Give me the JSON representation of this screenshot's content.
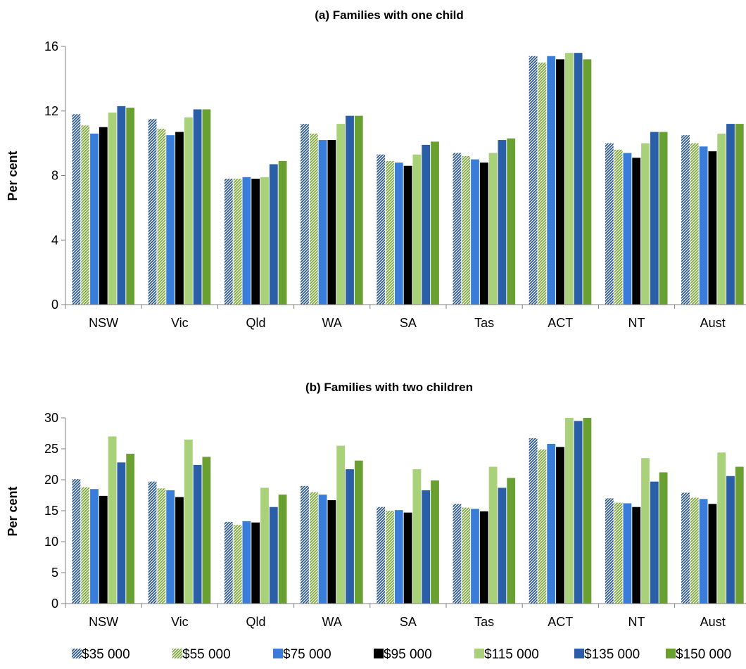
{
  "legend": [
    "$35 000",
    "$55 000",
    "$75 000",
    "$95 000",
    "$115 000",
    "$135 000",
    "$150 000"
  ],
  "colors": {
    "s35": "#1f4e8c",
    "s55": "#76a52d",
    "s75": "#3a7dd8",
    "s95": "#000000",
    "s115": "#a9d179",
    "s135": "#2a5fa8",
    "s150": "#6a9f32",
    "axis": "#808080"
  },
  "chart_data": [
    {
      "type": "bar",
      "title": "(a) Families with one child",
      "ylabel": "Per cent",
      "xlabel": "",
      "ylim": [
        0,
        16
      ],
      "yticks": [
        0,
        4,
        8,
        12,
        16
      ],
      "categories": [
        "NSW",
        "Vic",
        "Qld",
        "WA",
        "SA",
        "Tas",
        "ACT",
        "NT",
        "Aust"
      ],
      "series": [
        {
          "name": "$35 000",
          "values": [
            11.8,
            11.5,
            7.8,
            11.2,
            9.3,
            9.4,
            15.4,
            10.0,
            10.5
          ]
        },
        {
          "name": "$55 000",
          "values": [
            11.1,
            10.9,
            7.8,
            10.6,
            8.9,
            9.2,
            15.0,
            9.6,
            10.0
          ]
        },
        {
          "name": "$75 000",
          "values": [
            10.6,
            10.5,
            7.9,
            10.2,
            8.8,
            9.0,
            15.4,
            9.4,
            9.8
          ]
        },
        {
          "name": "$95 000",
          "values": [
            11.0,
            10.7,
            7.8,
            10.2,
            8.6,
            8.8,
            15.2,
            9.1,
            9.5
          ]
        },
        {
          "name": "$115 000",
          "values": [
            11.9,
            11.6,
            7.9,
            11.2,
            9.3,
            9.4,
            15.6,
            10.0,
            10.6
          ]
        },
        {
          "name": "$135 000",
          "values": [
            12.3,
            12.1,
            8.7,
            11.7,
            9.9,
            10.2,
            15.6,
            10.7,
            11.2
          ]
        },
        {
          "name": "$150 000",
          "values": [
            12.2,
            12.1,
            8.9,
            11.7,
            10.1,
            10.3,
            15.2,
            10.7,
            11.2
          ]
        }
      ]
    },
    {
      "type": "bar",
      "title": "(b) Families with two children",
      "ylabel": "Per cent",
      "xlabel": "",
      "ylim": [
        0,
        30
      ],
      "yticks": [
        0,
        5,
        10,
        15,
        20,
        25,
        30
      ],
      "categories": [
        "NSW",
        "Vic",
        "Qld",
        "WA",
        "SA",
        "Tas",
        "ACT",
        "NT",
        "Aust"
      ],
      "series": [
        {
          "name": "$35 000",
          "values": [
            20.1,
            19.7,
            13.2,
            19.0,
            15.6,
            16.1,
            26.7,
            17.0,
            17.9
          ]
        },
        {
          "name": "$55 000",
          "values": [
            18.8,
            18.6,
            12.7,
            18.0,
            15.0,
            15.5,
            24.9,
            16.3,
            17.1
          ]
        },
        {
          "name": "$75 000",
          "values": [
            18.5,
            18.3,
            13.3,
            17.6,
            15.1,
            15.3,
            25.8,
            16.2,
            16.9
          ]
        },
        {
          "name": "$95 000",
          "values": [
            17.4,
            17.2,
            13.1,
            16.7,
            14.7,
            14.9,
            25.3,
            15.6,
            16.1
          ]
        },
        {
          "name": "$115 000",
          "values": [
            27.0,
            26.5,
            18.7,
            25.5,
            21.7,
            22.1,
            30.0,
            23.5,
            24.4
          ]
        },
        {
          "name": "$135 000",
          "values": [
            22.8,
            22.4,
            15.6,
            21.7,
            18.3,
            18.7,
            29.5,
            19.7,
            20.6
          ]
        },
        {
          "name": "$150 000",
          "values": [
            24.2,
            23.7,
            17.6,
            23.1,
            19.9,
            20.3,
            30.0,
            21.2,
            22.1
          ]
        }
      ]
    }
  ]
}
